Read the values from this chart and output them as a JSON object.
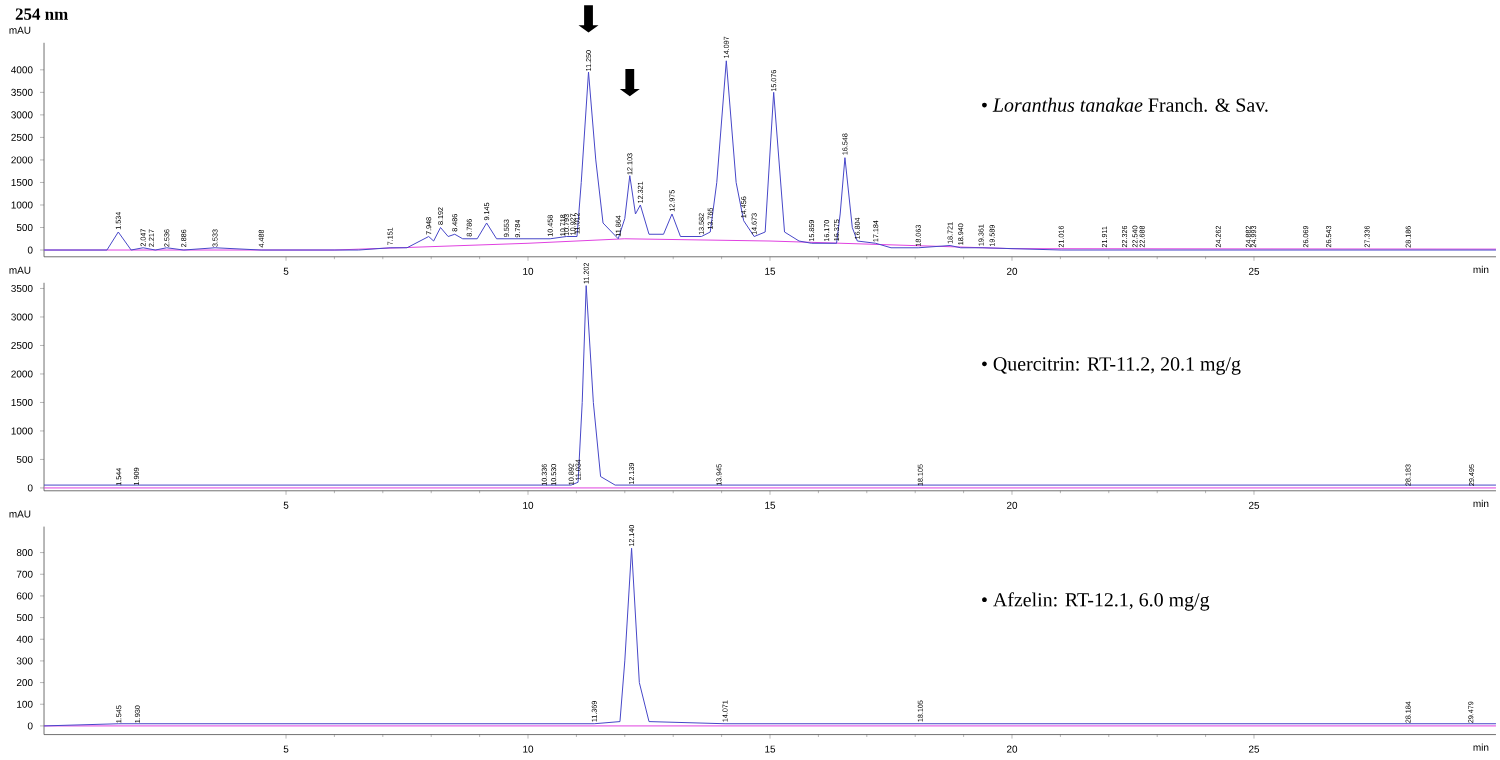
{
  "chart_data": [
    {
      "type": "line",
      "title": "254 nm",
      "xlabel": "min",
      "ylabel": "mAU",
      "xlim": [
        0,
        30
      ],
      "ylim": [
        -150,
        4600
      ],
      "xticks": [
        5,
        10,
        15,
        20,
        25
      ],
      "yticks": [
        0,
        500,
        1000,
        1500,
        2000,
        2500,
        3000,
        3500,
        4000
      ],
      "marker": "none",
      "series": [
        {
          "color": "#4646c8",
          "x": [
            0,
            1.3,
            1.534,
            1.8,
            2.047,
            2.3,
            2.536,
            2.886,
            3.533,
            4.488,
            6.5,
            7.151,
            7.5,
            7.948,
            8.05,
            8.192,
            8.35,
            8.486,
            8.65,
            8.786,
            8.95,
            9.145,
            9.35,
            9.553,
            9.784,
            10.2,
            10.458,
            10.793,
            11.012,
            11.1,
            11.25,
            11.4,
            11.55,
            11.864,
            12.0,
            12.103,
            12.22,
            12.321,
            12.5,
            12.8,
            12.975,
            13.15,
            13.582,
            13.765,
            13.9,
            14.097,
            14.3,
            14.456,
            14.673,
            14.9,
            15.076,
            15.3,
            15.6,
            15.859,
            16.17,
            16.375,
            16.45,
            16.548,
            16.7,
            16.804,
            17.184,
            17.5,
            18.063,
            18.721,
            18.94,
            19.4,
            21.016,
            22.5,
            24.262,
            26.069,
            28.186,
            30
          ],
          "values": [
            0,
            0,
            400,
            0,
            50,
            0,
            50,
            0,
            50,
            0,
            0,
            50,
            50,
            300,
            200,
            500,
            300,
            350,
            250,
            250,
            250,
            600,
            250,
            250,
            250,
            250,
            250,
            300,
            300,
            1500,
            3950,
            2000,
            600,
            250,
            700,
            1650,
            800,
            1000,
            350,
            350,
            800,
            300,
            300,
            400,
            1500,
            4200,
            1500,
            650,
            300,
            400,
            3500,
            400,
            200,
            150,
            150,
            150,
            800,
            2050,
            500,
            200,
            150,
            50,
            50,
            100,
            50,
            50,
            0,
            0,
            0,
            0,
            0,
            0
          ]
        },
        {
          "color": "#e040e0",
          "x": [
            0,
            6,
            10,
            12,
            15,
            20,
            30
          ],
          "values": [
            0,
            0,
            150,
            250,
            200,
            30,
            20
          ]
        }
      ],
      "annotations": [
        {
          "text": "1.534",
          "x": 1.534,
          "y": 415
        },
        {
          "text": "2.047",
          "x": 2.047,
          "y": 40
        },
        {
          "text": "2.217",
          "x": 2.217,
          "y": 30
        },
        {
          "text": "2.536",
          "x": 2.536,
          "y": 30
        },
        {
          "text": "2.886",
          "x": 2.886,
          "y": 25
        },
        {
          "text": "3.533",
          "x": 3.533,
          "y": 30
        },
        {
          "text": "4.488",
          "x": 4.488,
          "y": 20
        },
        {
          "text": "7.151",
          "x": 7.151,
          "y": 70
        },
        {
          "text": "7.948",
          "x": 7.948,
          "y": 300
        },
        {
          "text": "8.192",
          "x": 8.192,
          "y": 520
        },
        {
          "text": "8.486",
          "x": 8.486,
          "y": 370
        },
        {
          "text": "8.786",
          "x": 8.786,
          "y": 260
        },
        {
          "text": "9.145",
          "x": 9.145,
          "y": 620
        },
        {
          "text": "9.553",
          "x": 9.553,
          "y": 250
        },
        {
          "text": "9.784",
          "x": 9.784,
          "y": 240
        },
        {
          "text": "10.458",
          "x": 10.458,
          "y": 260
        },
        {
          "text": "10.718",
          "x": 10.718,
          "y": 270
        },
        {
          "text": "10.793",
          "x": 10.793,
          "y": 280
        },
        {
          "text": "10.927",
          "x": 10.927,
          "y": 290
        },
        {
          "text": "11.012",
          "x": 11.012,
          "y": 320
        },
        {
          "text": "11.250",
          "x": 11.25,
          "y": 3930
        },
        {
          "text": "11.864",
          "x": 11.864,
          "y": 260
        },
        {
          "text": "12.103",
          "x": 12.103,
          "y": 1630
        },
        {
          "text": "12.321",
          "x": 12.321,
          "y": 1000
        },
        {
          "text": "12.975",
          "x": 12.975,
          "y": 815
        },
        {
          "text": "13.582",
          "x": 13.582,
          "y": 300
        },
        {
          "text": "13.765",
          "x": 13.765,
          "y": 420
        },
        {
          "text": "14.097",
          "x": 14.097,
          "y": 4220
        },
        {
          "text": "14.456",
          "x": 14.456,
          "y": 670
        },
        {
          "text": "14.673",
          "x": 14.673,
          "y": 300
        },
        {
          "text": "15.076",
          "x": 15.076,
          "y": 3480
        },
        {
          "text": "15.859",
          "x": 15.859,
          "y": 150
        },
        {
          "text": "16.170",
          "x": 16.17,
          "y": 150
        },
        {
          "text": "16.375",
          "x": 16.375,
          "y": 160
        },
        {
          "text": "16.548",
          "x": 16.548,
          "y": 2070
        },
        {
          "text": "16.804",
          "x": 16.804,
          "y": 200
        },
        {
          "text": "17.184",
          "x": 17.184,
          "y": 140
        },
        {
          "text": "18.063",
          "x": 18.063,
          "y": 40
        },
        {
          "text": "18.721",
          "x": 18.721,
          "y": 100
        },
        {
          "text": "18.940",
          "x": 18.94,
          "y": 70
        },
        {
          "text": "19.361",
          "x": 19.361,
          "y": 50
        },
        {
          "text": "19.589",
          "x": 19.589,
          "y": 40
        },
        {
          "text": "21.016",
          "x": 21.016,
          "y": 20
        },
        {
          "text": "21.911",
          "x": 21.911,
          "y": 20
        },
        {
          "text": "22.326",
          "x": 22.326,
          "y": 20
        },
        {
          "text": "22.540",
          "x": 22.54,
          "y": 20
        },
        {
          "text": "22.688",
          "x": 22.688,
          "y": 20
        },
        {
          "text": "24.262",
          "x": 24.262,
          "y": 20
        },
        {
          "text": "24.882",
          "x": 24.882,
          "y": 20
        },
        {
          "text": "24.993",
          "x": 24.993,
          "y": 20
        },
        {
          "text": "26.069",
          "x": 26.069,
          "y": 20
        },
        {
          "text": "26.543",
          "x": 26.543,
          "y": 20
        },
        {
          "text": "27.336",
          "x": 27.336,
          "y": 20
        },
        {
          "text": "28.186",
          "x": 28.186,
          "y": 15
        },
        "• *Loranthus tanakae* Franch. & Sav."
      ]
    },
    {
      "type": "line",
      "xlabel": "min",
      "ylabel": "mAU",
      "xlim": [
        0,
        30
      ],
      "ylim": [
        -50,
        3600
      ],
      "xticks": [
        5,
        10,
        15,
        20,
        25
      ],
      "yticks": [
        0,
        500,
        1000,
        1500,
        2000,
        2500,
        3000,
        3500
      ],
      "marker": "none",
      "series": [
        {
          "color": "#4646c8",
          "x": [
            0,
            1.544,
            1.909,
            10.336,
            10.892,
            11.034,
            11.12,
            11.202,
            11.35,
            11.5,
            11.8,
            12.139,
            13.945,
            18.105,
            30
          ],
          "values": [
            50,
            50,
            50,
            50,
            50,
            100,
            1500,
            3550,
            1500,
            200,
            50,
            50,
            50,
            50,
            50
          ]
        },
        {
          "color": "#e040e0",
          "x": [
            0,
            30
          ],
          "values": [
            0,
            0
          ]
        }
      ],
      "annotations": [
        {
          "text": "1.544",
          "x": 1.544,
          "y": 10
        },
        {
          "text": "1.909",
          "x": 1.909,
          "y": 15
        },
        {
          "text": "10.336",
          "x": 10.336,
          "y": 10
        },
        {
          "text": "10.530",
          "x": 10.53,
          "y": 10
        },
        {
          "text": "10.892",
          "x": 10.892,
          "y": 20
        },
        {
          "text": "11.034",
          "x": 11.034,
          "y": 100
        },
        {
          "text": "11.202",
          "x": 11.202,
          "y": 3550
        },
        {
          "text": "12.139",
          "x": 12.139,
          "y": 30
        },
        {
          "text": "13.945",
          "x": 13.945,
          "y": 10
        },
        {
          "text": "18.105",
          "x": 18.105,
          "y": 5
        },
        {
          "text": "28.183",
          "x": 28.183,
          "y": 5
        },
        {
          "text": "29.495",
          "x": 29.495,
          "y": 5
        },
        "• Quercitrin: RT-11.2, 20.1 mg/g"
      ]
    },
    {
      "type": "line",
      "xlabel": "min",
      "ylabel": "mAU",
      "xlim": [
        0,
        30
      ],
      "ylim": [
        -40,
        920
      ],
      "xticks": [
        5,
        10,
        15,
        20,
        25
      ],
      "yticks": [
        0,
        100,
        200,
        300,
        400,
        500,
        600,
        700,
        800
      ],
      "marker": "none",
      "series": [
        {
          "color": "#4646c8",
          "x": [
            0,
            1.545,
            1.93,
            11.369,
            11.9,
            12.0,
            12.14,
            12.3,
            12.5,
            14.071,
            18.105,
            30
          ],
          "values": [
            0,
            10,
            10,
            10,
            20,
            300,
            820,
            200,
            20,
            10,
            10,
            10
          ]
        },
        {
          "color": "#e040e0",
          "x": [
            0,
            30
          ],
          "values": [
            0,
            0
          ]
        }
      ],
      "annotations": [
        {
          "text": "1.545",
          "x": 1.545,
          "y": 5
        },
        {
          "text": "1.930",
          "x": 1.93,
          "y": 5
        },
        {
          "text": "11.369",
          "x": 11.369,
          "y": 10
        },
        {
          "text": "12.140",
          "x": 12.14,
          "y": 820
        },
        {
          "text": "14.071",
          "x": 14.071,
          "y": 10
        },
        {
          "text": "18.105",
          "x": 18.105,
          "y": 10
        },
        {
          "text": "28.184",
          "x": 28.184,
          "y": 5
        },
        {
          "text": "29.479",
          "x": 29.479,
          "y": 5
        },
        "• Afzelin: RT-12.1, 6.0 mg/g"
      ]
    }
  ]
}
